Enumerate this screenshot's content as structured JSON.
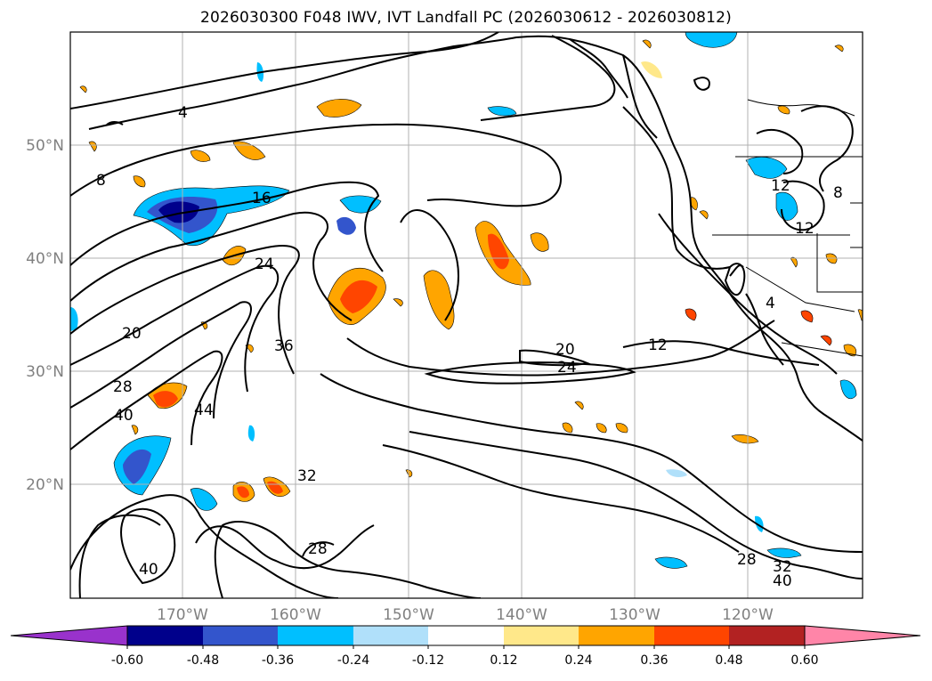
{
  "title": "2026030300 F048 IWV, IVT Landfall PC (2026030612 - 2026030812)",
  "map": {
    "lat_labels": [
      "50°N",
      "40°N",
      "30°N",
      "20°N"
    ],
    "lon_labels": [
      "170°W",
      "160°W",
      "150°W",
      "140°W",
      "130°W",
      "120°W"
    ],
    "contour_labels": [
      "4",
      "8",
      "16",
      "24",
      "20",
      "28",
      "36",
      "40",
      "44",
      "32",
      "28",
      "40",
      "20",
      "24",
      "12",
      "8",
      "12",
      "12",
      "4",
      "28",
      "32",
      "40"
    ],
    "colors": {
      "land_line": "#000000",
      "contour": "#000000",
      "grid": "#b0b0b0"
    }
  },
  "colorbar": {
    "levels": [
      "-0.60",
      "-0.48",
      "-0.36",
      "-0.24",
      "-0.12",
      "0.12",
      "0.24",
      "0.36",
      "0.48",
      "0.60"
    ],
    "colors": [
      "#9932cc",
      "#00008b",
      "#3355cc",
      "#00bfff",
      "#b0e0fa",
      "#ffffff",
      "#ffe88a",
      "#ffa500",
      "#ff4500",
      "#b22222",
      "#ff85a8"
    ]
  }
}
